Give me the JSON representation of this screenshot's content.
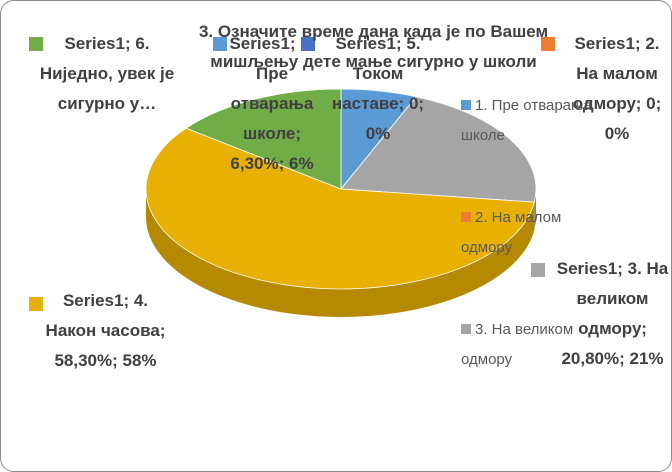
{
  "chart_data": {
    "type": "pie3d",
    "title": "3. Означите време дана када је по Вашем мишљењу дете мање сигурно у школи",
    "categories": [
      "1. Пре отварања школе",
      "2. На малом одмору",
      "3. На великом одмору",
      "4. Након часова",
      "5. Током наставе",
      "6. Ниједно, увек је сигурно у…"
    ],
    "values": [
      6.3,
      0,
      20.8,
      58.3,
      0,
      14.6
    ],
    "value_labels": [
      "6,30%; 6%",
      "0; 0%",
      "20,80%; 21%",
      "58,30%; 58%",
      "0; 0%",
      null
    ],
    "data_labels": [
      "Series1; 1. Пре отварања школе; 6,30%; 6%",
      "Series1; 2. На малом одмору; 0; 0%",
      "Series1; 3. На великом одмору; 20,80%; 21%",
      "Series1; 4. Након часова; 58,30%; 58%",
      "Series1; 5. Током наставе; 0; 0%",
      "Series1; 6. Ниједно, увек је сигурно у…"
    ],
    "colors": [
      "#5b9bd5",
      "#ed7d31",
      "#a5a5a5",
      "#e8b000",
      "#4472c4",
      "#70ad47"
    ],
    "legend": {
      "position": "right",
      "entries": [
        0,
        1,
        2
      ]
    }
  }
}
